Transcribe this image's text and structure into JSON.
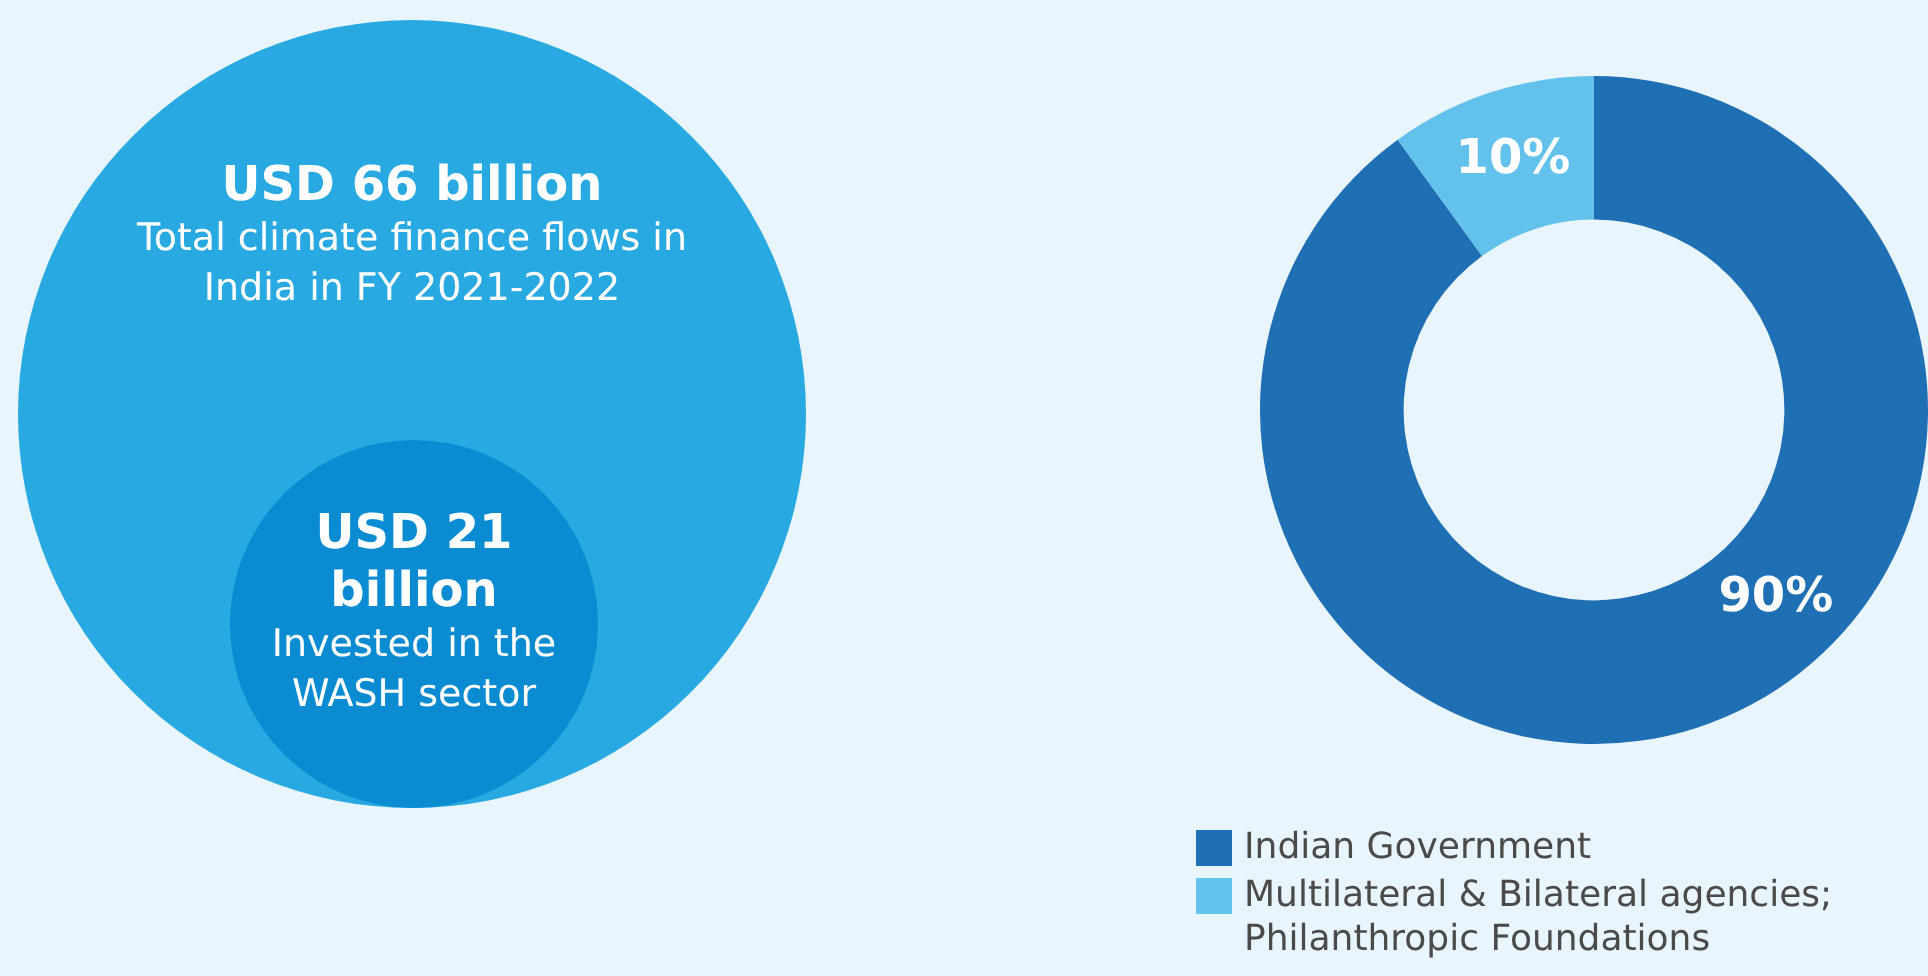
{
  "chart_data": [
    {
      "type": "other",
      "annotations": [
        "USD 66 billion",
        "Total climate finance flows in India in FY 2021-2022",
        "USD 21 billion",
        "Invested in the WASH sector"
      ]
    },
    {
      "type": "donut",
      "categories": [
        "Indian Government",
        "Multilateral & Bilateral agencies; Philanthropic Foundations"
      ],
      "values": [
        90,
        10
      ],
      "colors": [
        "#1f6fb4",
        "#62c2ec"
      ],
      "value_labels": [
        "90%",
        "10%"
      ],
      "legend": "bottom"
    }
  ]
}
